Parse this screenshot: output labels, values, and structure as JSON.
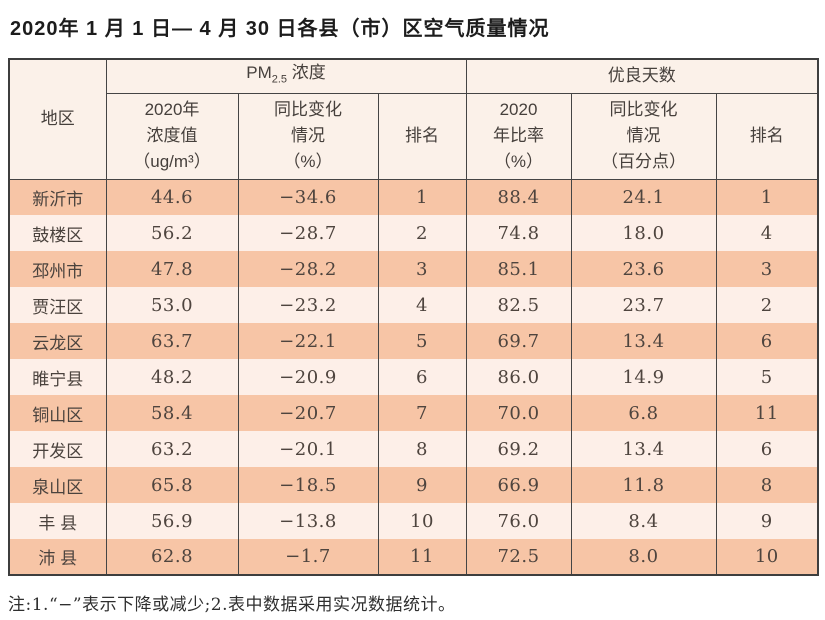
{
  "title": "2020年 1 月 1 日— 4 月 30 日各县（市）区空气质量情况",
  "footnote": "注:1.“−”表示下降或减少;2.表中数据采用实况数据统计。",
  "colors": {
    "stripe_odd": "#f7c5a6",
    "stripe_even": "#fdefe8",
    "header_bg": "#fbf1e9",
    "border": "#454545"
  },
  "table": {
    "header": {
      "region": "地区",
      "pm25": {
        "prefix": "PM",
        "sub": "2.5",
        "suffix": " 浓度"
      },
      "good_days": "优良天数",
      "sub": [
        "2020年\n浓度值\n（ug/m³）",
        "同比变化\n情况\n（%）",
        "排名",
        "2020\n年比率\n（%）",
        "同比变化\n情况\n（百分点）",
        "排名"
      ]
    },
    "rows": [
      [
        "新沂市",
        "44.6",
        "−34.6",
        "1",
        "88.4",
        "24.1",
        "1"
      ],
      [
        "鼓楼区",
        "56.2",
        "−28.7",
        "2",
        "74.8",
        "18.0",
        "4"
      ],
      [
        "邳州市",
        "47.8",
        "−28.2",
        "3",
        "85.1",
        "23.6",
        "3"
      ],
      [
        "贾汪区",
        "53.0",
        "−23.2",
        "4",
        "82.5",
        "23.7",
        "2"
      ],
      [
        "云龙区",
        "63.7",
        "−22.1",
        "5",
        "69.7",
        "13.4",
        "6"
      ],
      [
        "睢宁县",
        "48.2",
        "−20.9",
        "6",
        "86.0",
        "14.9",
        "5"
      ],
      [
        "铜山区",
        "58.4",
        "−20.7",
        "7",
        "70.0",
        "6.8",
        "11"
      ],
      [
        "开发区",
        "63.2",
        "−20.1",
        "8",
        "69.2",
        "13.4",
        "6"
      ],
      [
        "泉山区",
        "65.8",
        "−18.5",
        "9",
        "66.9",
        "11.8",
        "8"
      ],
      [
        "丰 县",
        "56.9",
        "−13.8",
        "10",
        "76.0",
        "8.4",
        "9"
      ],
      [
        "沛 县",
        "62.8",
        "−1.7",
        "11",
        "72.5",
        "8.0",
        "10"
      ]
    ]
  },
  "chart_data": {
    "type": "table",
    "title": "2020年 1 月 1 日— 4 月 30 日各县（市）区空气质量情况",
    "columns": [
      "地区",
      "PM2.5浓度 2020年浓度值（ug/m³）",
      "PM2.5浓度 同比变化情况（%）",
      "PM2.5浓度 排名",
      "优良天数 2020年比率（%）",
      "优良天数 同比变化情况（百分点）",
      "优良天数 排名"
    ],
    "rows": [
      [
        "新沂市",
        44.6,
        -34.6,
        1,
        88.4,
        24.1,
        1
      ],
      [
        "鼓楼区",
        56.2,
        -28.7,
        2,
        74.8,
        18.0,
        4
      ],
      [
        "邳州市",
        47.8,
        -28.2,
        3,
        85.1,
        23.6,
        3
      ],
      [
        "贾汪区",
        53.0,
        -23.2,
        4,
        82.5,
        23.7,
        2
      ],
      [
        "云龙区",
        63.7,
        -22.1,
        5,
        69.7,
        13.4,
        6
      ],
      [
        "睢宁县",
        48.2,
        -20.9,
        6,
        86.0,
        14.9,
        5
      ],
      [
        "铜山区",
        58.4,
        -20.7,
        7,
        70.0,
        6.8,
        11
      ],
      [
        "开发区",
        63.2,
        -20.1,
        8,
        69.2,
        13.4,
        6
      ],
      [
        "泉山区",
        65.8,
        -18.5,
        9,
        66.9,
        11.8,
        8
      ],
      [
        "丰县",
        56.9,
        -13.8,
        10,
        76.0,
        8.4,
        9
      ],
      [
        "沛县",
        62.8,
        -1.7,
        11,
        72.5,
        8.0,
        10
      ]
    ]
  }
}
